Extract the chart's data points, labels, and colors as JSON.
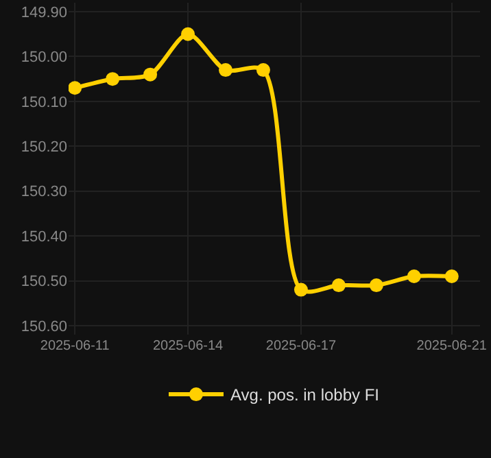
{
  "chart_data": {
    "type": "line",
    "x": [
      "2025-06-11",
      "2025-06-12",
      "2025-06-13",
      "2025-06-14",
      "2025-06-15",
      "2025-06-16",
      "2025-06-17",
      "2025-06-18",
      "2025-06-19",
      "2025-06-20",
      "2025-06-21"
    ],
    "series": [
      {
        "name": "Avg. pos. in lobby FI",
        "color": "#ffd000",
        "values": [
          150.07,
          150.05,
          150.04,
          149.95,
          150.03,
          150.03,
          150.52,
          150.51,
          150.51,
          150.49,
          150.49
        ]
      }
    ],
    "ylim": [
      150.62,
      149.88
    ],
    "yticks": [
      {
        "value": 149.9,
        "label": "149.90"
      },
      {
        "value": 150.0,
        "label": "150.00"
      },
      {
        "value": 150.1,
        "label": "150.10"
      },
      {
        "value": 150.2,
        "label": "150.20"
      },
      {
        "value": 150.3,
        "label": "150.30"
      },
      {
        "value": 150.4,
        "label": "150.40"
      },
      {
        "value": 150.5,
        "label": "150.50"
      },
      {
        "value": 150.6,
        "label": "150.60"
      }
    ],
    "xlim": [
      "2025-06-10T20:00",
      "2025-06-21T18:00"
    ],
    "xticks": [
      "2025-06-11",
      "2025-06-14",
      "2025-06-17",
      "2025-06-21"
    ],
    "grid": true,
    "legend": "bottom",
    "marker": "circle",
    "line_style": "solid"
  }
}
